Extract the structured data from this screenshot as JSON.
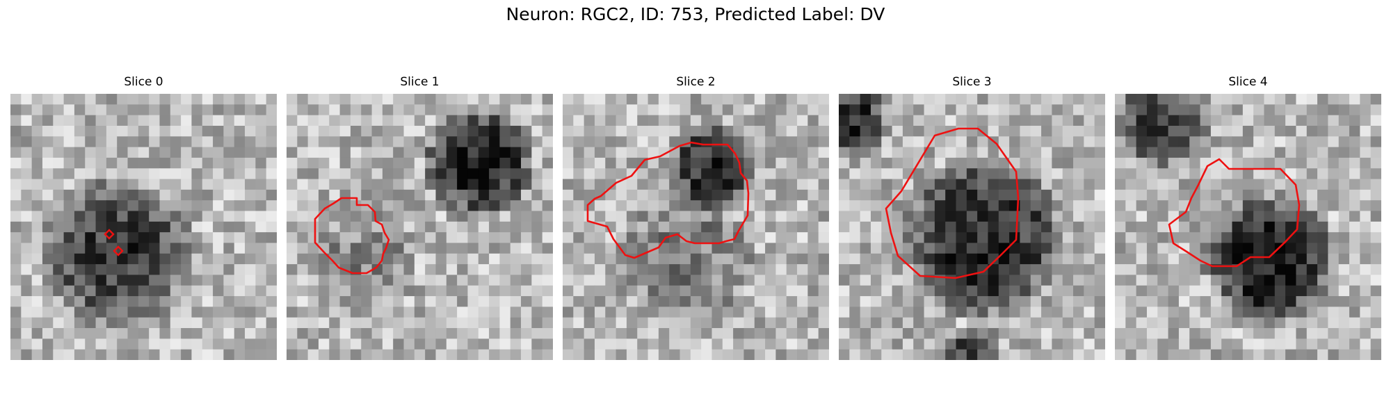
{
  "figure": {
    "title": "Neuron: RGC2, ID: 753, Predicted Label: DV"
  },
  "panels": [
    {
      "title": "Slice 0",
      "contour": "two small diamond markers near the dark cell center"
    },
    {
      "title": "Slice 1",
      "contour": "outline around the lower-left grey region"
    },
    {
      "title": "Slice 2",
      "contour": "outline around the central dark cell and lower region"
    },
    {
      "title": "Slice 3",
      "contour": "large outline around the central dark cell"
    },
    {
      "title": "Slice 4",
      "contour": "outline on the right part above the dark cell"
    }
  ],
  "colors": {
    "contour": "#ee1111",
    "background": "#ffffff"
  }
}
